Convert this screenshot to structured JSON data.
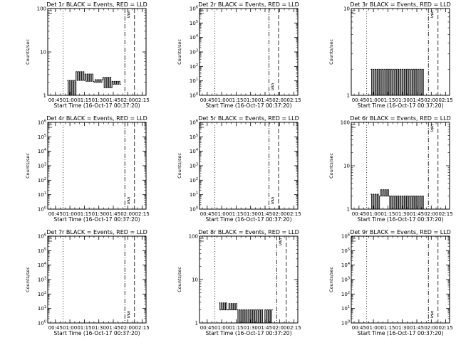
{
  "chart_data": [
    {
      "type": "line",
      "title": "Det 1r BLACK = Events, RED = LLD",
      "xlabel": "Start Time (16-Oct-17 00:37:20)",
      "ylabel": "Counts/sec",
      "xticks": [
        "00:45",
        "01:00",
        "01:15",
        "01:30",
        "01:45",
        "02:00",
        "02:15"
      ],
      "yscale": "log",
      "ylim": [
        1,
        100
      ],
      "yticks": [
        "1",
        "10",
        "100"
      ],
      "vlines": {
        "dotted": [
          "00:53"
        ],
        "dashdot": [
          "01:57"
        ],
        "dashed": [
          "02:07"
        ]
      },
      "annotation": "S",
      "series": [
        {
          "values": [
            [
              0.98,
              2.2
            ],
            [
              2.2,
              3.5
            ],
            [
              2.1,
              3.1
            ],
            [
              2.3,
              2.0
            ],
            [
              1.5,
              2.6
            ],
            [
              1.8,
              2.1
            ]
          ]
        }
      ]
    },
    {
      "type": "line",
      "title": "Det 2r BLACK = Events, RED = LLD",
      "xlabel": "Start Time (16-Oct-17 00:37:20)",
      "ylabel": "Counts/sec",
      "xticks": [
        "00:45",
        "01:00",
        "01:15",
        "01:30",
        "01:45",
        "02:00",
        "02:15"
      ],
      "yscale": "log",
      "ylim": [
        1,
        1000000
      ],
      "yticks": [
        "10^0",
        "10^1",
        "10^2",
        "10^3",
        "10^4",
        "10^5",
        "10^6"
      ],
      "vlines": {
        "dotted": [
          "00:53"
        ],
        "dashdot": [
          "01:49"
        ],
        "dashed": [
          "01:59"
        ]
      },
      "annotation": "S",
      "series": []
    },
    {
      "type": "line",
      "title": "Det 3r BLACK = Events, RED = LLD",
      "xlabel": "Start Time (16-Oct-17 00:37:20)",
      "ylabel": "Counts/sec",
      "xticks": [
        "00:45",
        "01:00",
        "01:15",
        "01:30",
        "01:45",
        "02:00",
        "02:15"
      ],
      "yscale": "log",
      "ylim": [
        1,
        10
      ],
      "yticks": [
        "1",
        "10"
      ],
      "vlines": {
        "dotted": [
          "00:53"
        ],
        "dashdot": [
          "01:57"
        ],
        "dashed": [
          "02:07"
        ]
      },
      "annotation": "S",
      "series": [
        {
          "values": [
            [
              1.0,
              2.0
            ],
            [
              1.0,
              2.0
            ],
            [
              1.0,
              2.0
            ],
            [
              1.0,
              2.0
            ],
            [
              1.0,
              2.0
            ],
            [
              1.0,
              2.0
            ]
          ]
        }
      ]
    },
    {
      "type": "line",
      "title": "Det 4r BLACK = Events, RED = LLD",
      "xlabel": "Start Time (16-Oct-17 00:37:20)",
      "ylabel": "Counts/sec",
      "xticks": [
        "00:45",
        "01:00",
        "01:15",
        "01:30",
        "01:45",
        "02:00",
        "02:15"
      ],
      "yscale": "log",
      "ylim": [
        1,
        1000000
      ],
      "yticks": [
        "10^0",
        "10^1",
        "10^2",
        "10^3",
        "10^4",
        "10^5",
        "10^6"
      ],
      "vlines": {
        "dotted": [
          "00:53"
        ],
        "dashdot": [
          "01:57"
        ],
        "dashed": [
          "02:07"
        ]
      },
      "annotation": "S",
      "series": []
    },
    {
      "type": "line",
      "title": "Det 5r BLACK = Events, RED = LLD",
      "xlabel": "Start Time (16-Oct-17 00:37:20)",
      "ylabel": "Counts/sec",
      "xticks": [
        "00:45",
        "01:00",
        "01:15",
        "01:30",
        "01:45",
        "02:00",
        "02:15"
      ],
      "yscale": "log",
      "ylim": [
        1,
        1000000
      ],
      "yticks": [
        "10^0",
        "10^1",
        "10^2",
        "10^3",
        "10^4",
        "10^5",
        "10^6"
      ],
      "vlines": {
        "dotted": [
          "00:53"
        ],
        "dashdot": [
          "01:49"
        ],
        "dashed": [
          "01:59"
        ]
      },
      "annotation": "S",
      "series": []
    },
    {
      "type": "line",
      "title": "Det 6r BLACK = Events, RED = LLD",
      "xlabel": "Start Time (16-Oct-17 00:37:20)",
      "ylabel": "Counts/sec",
      "xticks": [
        "00:45",
        "01:00",
        "01:15",
        "01:30",
        "01:45",
        "02:00",
        "02:15"
      ],
      "yscale": "log",
      "ylim": [
        1,
        100
      ],
      "yticks": [
        "1",
        "10",
        "100"
      ],
      "vlines": {
        "dotted": [
          "00:53"
        ],
        "dashdot": [
          "01:57"
        ],
        "dashed": [
          "02:07"
        ]
      },
      "annotation": "S",
      "series": [
        {
          "values": [
            [
              1.0,
              2.2
            ],
            [
              2.8,
              2.0
            ],
            [
              1.0,
              2.0
            ],
            [
              1.0,
              2.0
            ],
            [
              1.0,
              2.0
            ],
            [
              1.0,
              2.0
            ]
          ]
        }
      ]
    },
    {
      "type": "line",
      "title": "Det 7r BLACK = Events, RED = LLD",
      "xlabel": "Start Time (16-Oct-17 00:37:20)",
      "ylabel": "Counts/sec",
      "xticks": [
        "00:45",
        "01:00",
        "01:15",
        "01:30",
        "01:45",
        "02:00",
        "02:15"
      ],
      "yscale": "log",
      "ylim": [
        1,
        1000000
      ],
      "yticks": [
        "10^0",
        "10^1",
        "10^2",
        "10^3",
        "10^4",
        "10^5",
        "10^6"
      ],
      "vlines": {
        "dotted": [
          "00:53"
        ],
        "dashdot": [
          "01:57"
        ],
        "dashed": [
          "02:07"
        ]
      },
      "annotation": "S",
      "series": []
    },
    {
      "type": "line",
      "title": "Det 8r BLACK = Events, RED = LLD",
      "xlabel": "Start Time (16-Oct-17 00:37:20)",
      "ylabel": "Counts/sec",
      "xticks": [
        "00:45",
        "01:00",
        "01:15",
        "01:30",
        "01:45",
        "02:00",
        "02:15"
      ],
      "yscale": "log",
      "ylim": [
        1,
        100
      ],
      "yticks": [
        "1",
        "10",
        "100"
      ],
      "vlines": {
        "dotted": [
          "00:53"
        ],
        "dashdot": [
          "01:57"
        ],
        "dashed": [
          "02:07"
        ]
      },
      "annotation": "S",
      "series": [
        {
          "values": [
            [
              2.0,
              2.9
            ],
            [
              2.8,
              2.0
            ],
            [
              1.0,
              2.0
            ],
            [
              1.0,
              2.0
            ],
            [
              1.0,
              2.0
            ],
            [
              2.0,
              1.0
            ]
          ]
        }
      ]
    },
    {
      "type": "line",
      "title": "Det 9r BLACK = Events, RED = LLD",
      "xlabel": "Start Time (16-Oct-17 00:37:20)",
      "ylabel": "Counts/sec",
      "xticks": [
        "00:45",
        "01:00",
        "01:15",
        "01:30",
        "01:45",
        "02:00",
        "02:15"
      ],
      "yscale": "log",
      "ylim": [
        1,
        1000000
      ],
      "yticks": [
        "10^0",
        "10^1",
        "10^2",
        "10^3",
        "10^4",
        "10^5",
        "10^6"
      ],
      "vlines": {
        "dotted": [
          "00:53"
        ],
        "dashdot": [
          "01:57"
        ],
        "dashed": [
          "02:07"
        ]
      },
      "annotation": "S",
      "series": []
    }
  ]
}
